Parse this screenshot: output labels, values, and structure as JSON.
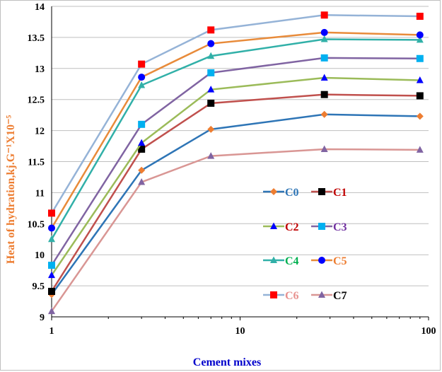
{
  "chart_data": {
    "type": "line",
    "xlabel": "Cement mixes",
    "ylabel": "Heat of hydration,kj.G⁻¹X10⁻⁵",
    "x_scale": "log",
    "xlim": [
      1,
      100
    ],
    "ylim": [
      9,
      14
    ],
    "x_ticks": [
      "1",
      "10",
      "100"
    ],
    "y_ticks": [
      "9",
      "9.5",
      "10",
      "10.5",
      "11",
      "11.5",
      "12",
      "12.5",
      "13",
      "13.5",
      "14"
    ],
    "x": [
      1,
      3,
      7,
      28,
      90
    ],
    "grid": "horizontal",
    "series": [
      {
        "name": "C0",
        "color": "#2e75b6",
        "marker_color": "#ed7d31",
        "marker": "diamond",
        "label_color": "#2e75b6",
        "values": [
          9.36,
          11.36,
          12.02,
          12.26,
          12.23
        ]
      },
      {
        "name": "C1",
        "color": "#c0504d",
        "marker_color": "#000000",
        "marker": "square",
        "label_color": "#c00000",
        "values": [
          9.41,
          11.7,
          12.44,
          12.58,
          12.56
        ]
      },
      {
        "name": "C2",
        "color": "#9bbb59",
        "marker_color": "#0000ff",
        "marker": "triangle",
        "label_color": "#c00000",
        "values": [
          9.67,
          11.8,
          12.66,
          12.85,
          12.81
        ]
      },
      {
        "name": "C3",
        "color": "#8064a2",
        "marker_color": "#00b0f0",
        "marker": "square",
        "label_color": "#7030a0",
        "values": [
          9.83,
          12.1,
          12.93,
          13.17,
          13.16
        ]
      },
      {
        "name": "C4",
        "color": "#31b0a8",
        "marker_color": "#31b0a8",
        "marker": "triangle",
        "label_color": "#00b050",
        "values": [
          10.25,
          12.73,
          13.2,
          13.47,
          13.46
        ]
      },
      {
        "name": "C5",
        "color": "#e88b3a",
        "marker_color": "#0000ff",
        "marker": "circle",
        "label_color": "#ed7d31",
        "values": [
          10.43,
          12.86,
          13.4,
          13.58,
          13.54
        ]
      },
      {
        "name": "C6",
        "color": "#95b3d7",
        "marker_color": "#ff0000",
        "marker": "square",
        "label_color": "#e8928f",
        "values": [
          10.67,
          13.07,
          13.62,
          13.86,
          13.84
        ]
      },
      {
        "name": "C7",
        "color": "#d99694",
        "marker_color": "#8064a2",
        "marker": "triangle",
        "label_color": "#000000",
        "values": [
          9.09,
          11.17,
          11.59,
          11.7,
          11.69
        ]
      }
    ]
  }
}
